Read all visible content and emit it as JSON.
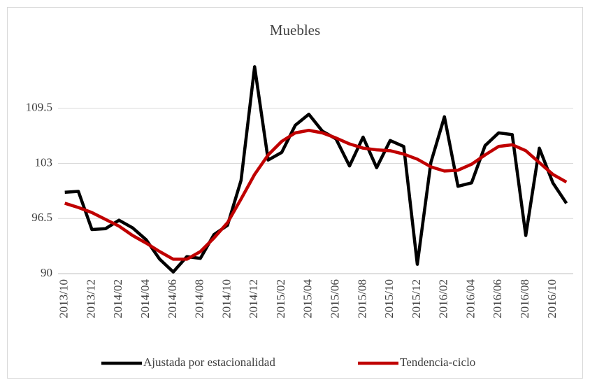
{
  "chart_data": {
    "type": "line",
    "title": "Muebles",
    "categories": [
      "2013/10",
      null,
      "2013/12",
      null,
      "2014/02",
      null,
      "2014/04",
      null,
      "2014/06",
      null,
      "2014/08",
      null,
      "2014/10",
      null,
      "2014/12",
      null,
      "2015/02",
      null,
      "2015/04",
      null,
      "2015/06",
      null,
      "2015/08",
      null,
      "2015/10",
      null,
      "2015/12",
      null,
      "2016/02",
      null,
      "2016/04",
      null,
      "2016/06",
      null,
      "2016/08",
      null,
      "2016/10",
      null
    ],
    "series": [
      {
        "name": "Ajustada por estacionalidad",
        "color": "#000000",
        "values": [
          99.6,
          99.7,
          95.2,
          95.3,
          96.3,
          95.4,
          94.0,
          91.7,
          90.2,
          92.0,
          91.8,
          94.6,
          95.7,
          101.0,
          114.4,
          103.4,
          104.3,
          107.5,
          108.8,
          106.8,
          105.9,
          102.7,
          106.1,
          102.5,
          105.7,
          105.0,
          91.1,
          103.1,
          108.5,
          100.3,
          100.7,
          105.1,
          106.6,
          106.4,
          94.5,
          104.8,
          100.7,
          98.3
        ]
      },
      {
        "name": "Tendencia-ciclo",
        "color": "#c00000",
        "values": [
          98.3,
          97.8,
          97.2,
          96.4,
          95.6,
          94.5,
          93.6,
          92.6,
          91.7,
          91.7,
          92.6,
          94.2,
          96.0,
          98.8,
          101.7,
          104.0,
          105.6,
          106.6,
          106.9,
          106.6,
          106.0,
          105.3,
          104.8,
          104.6,
          104.5,
          104.1,
          103.5,
          102.6,
          102.1,
          102.2,
          102.9,
          104.0,
          105.0,
          105.2,
          104.5,
          103.1,
          101.7,
          100.8
        ]
      }
    ],
    "ylim": [
      90,
      116
    ],
    "yticks": [
      90,
      96.5,
      103,
      109.5
    ],
    "grid": true,
    "legend": "bottom"
  }
}
